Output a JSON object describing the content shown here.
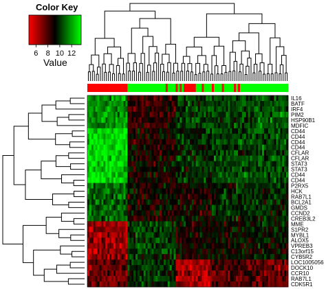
{
  "chart_data": {
    "type": "heatmap",
    "color_key": {
      "title": "Color Key",
      "axis_label": "Value",
      "ticks": [
        "6",
        "8",
        "10",
        "12"
      ],
      "tick_values": [
        6,
        8,
        10,
        12
      ],
      "range": [
        4.8,
        13.6
      ],
      "colors": {
        "low": "#ff0000",
        "mid": "#000000",
        "high": "#00ff00"
      }
    },
    "row_labels": [
      "IL16",
      "BATF",
      "IRF4",
      "PIM2",
      "HSP90B1",
      "MDFIC",
      "CD44",
      "CD44",
      "CD44",
      "CD44",
      "CFLAR",
      "CFLAR",
      "STAT3",
      "STAT3",
      "CD44",
      "CD44",
      "P2RX5",
      "HCK",
      "RAB7L1",
      "BCL2A1",
      "GMDS",
      "CCND2",
      "CREB3L2",
      "MME",
      "S1PR2",
      "MYBL1",
      "ALOX5",
      "VPREB3",
      "C13orf15",
      "CYB5R2",
      "LOC1005056",
      "DOCK10",
      "CCR10",
      "RAB7L1",
      "CDK5R1"
    ],
    "column_count": 100,
    "column_annotation_colors": {
      "group_a": "#ff0000",
      "group_b": "#00ff00"
    },
    "column_groups": [
      "a",
      "a",
      "a",
      "a",
      "a",
      "a",
      "a",
      "a",
      "a",
      "a",
      "a",
      "a",
      "a",
      "a",
      "a",
      "a",
      "a",
      "a",
      "a",
      "a",
      "b",
      "b",
      "b",
      "b",
      "b",
      "b",
      "b",
      "b",
      "b",
      "b",
      "b",
      "b",
      "b",
      "b",
      "b",
      "b",
      "b",
      "b",
      "b",
      "a",
      "b",
      "b",
      "b",
      "b",
      "a",
      "b",
      "a",
      "b",
      "a",
      "a",
      "a",
      "a",
      "a",
      "a",
      "b",
      "b",
      "b",
      "a",
      "b",
      "b",
      "b",
      "b",
      "a",
      "b",
      "b",
      "b",
      "b",
      "a",
      "b",
      "b",
      "b",
      "b",
      "b",
      "a",
      "b",
      "a",
      "b",
      "b",
      "b",
      "b",
      "b",
      "b",
      "b",
      "b",
      "b",
      "b",
      "b",
      "b",
      "b",
      "b",
      "b",
      "b",
      "b",
      "b",
      "b",
      "b",
      "b",
      "b",
      "b",
      "b"
    ],
    "block_means": [
      [
        11.5,
        8.0,
        9.8,
        10.0,
        10.5
      ],
      [
        11.5,
        8.0,
        9.8,
        10.0,
        10.5
      ],
      [
        11.5,
        8.0,
        9.8,
        10.0,
        10.5
      ],
      [
        11.5,
        8.0,
        9.8,
        10.0,
        10.5
      ],
      [
        11.5,
        8.0,
        9.8,
        10.0,
        10.5
      ],
      [
        11.5,
        8.0,
        9.8,
        10.0,
        10.5
      ],
      [
        12.8,
        8.6,
        9.6,
        10.0,
        10.2
      ],
      [
        12.8,
        8.6,
        9.6,
        10.0,
        10.2
      ],
      [
        12.8,
        8.6,
        9.6,
        10.0,
        10.2
      ],
      [
        12.8,
        8.6,
        9.6,
        10.0,
        10.2
      ],
      [
        12.8,
        8.6,
        9.6,
        10.0,
        10.2
      ],
      [
        12.8,
        8.6,
        9.6,
        10.0,
        10.2
      ],
      [
        12.8,
        8.6,
        9.6,
        10.0,
        10.2
      ],
      [
        12.8,
        8.6,
        9.6,
        10.0,
        10.2
      ],
      [
        12.8,
        8.6,
        9.6,
        10.0,
        10.2
      ],
      [
        12.8,
        8.6,
        9.6,
        10.0,
        10.2
      ],
      [
        10.6,
        8.6,
        8.6,
        9.4,
        9.4
      ],
      [
        10.6,
        8.6,
        8.6,
        9.4,
        9.4
      ],
      [
        10.6,
        8.6,
        8.6,
        9.4,
        9.4
      ],
      [
        10.6,
        8.6,
        8.6,
        9.4,
        9.4
      ],
      [
        10.6,
        8.6,
        8.6,
        9.4,
        9.4
      ],
      [
        10.6,
        8.6,
        8.6,
        9.4,
        9.4
      ],
      [
        10.6,
        8.6,
        8.6,
        9.4,
        9.4
      ],
      [
        6.4,
        9.8,
        8.6,
        8.8,
        9.0
      ],
      [
        6.4,
        9.8,
        8.6,
        8.8,
        9.0
      ],
      [
        6.4,
        9.8,
        8.6,
        8.8,
        9.0
      ],
      [
        6.4,
        9.8,
        8.6,
        8.8,
        9.0
      ],
      [
        6.4,
        9.8,
        8.6,
        8.8,
        9.0
      ],
      [
        6.4,
        9.8,
        8.6,
        8.8,
        9.0
      ],
      [
        6.4,
        9.8,
        8.6,
        8.8,
        9.0
      ],
      [
        7.2,
        9.6,
        6.2,
        7.6,
        7.2
      ],
      [
        7.2,
        9.6,
        6.2,
        7.6,
        7.2
      ],
      [
        7.2,
        9.6,
        6.2,
        7.6,
        7.2
      ],
      [
        7.2,
        9.6,
        6.2,
        7.6,
        7.2
      ],
      [
        7.2,
        9.6,
        6.2,
        7.6,
        7.2
      ]
    ]
  }
}
